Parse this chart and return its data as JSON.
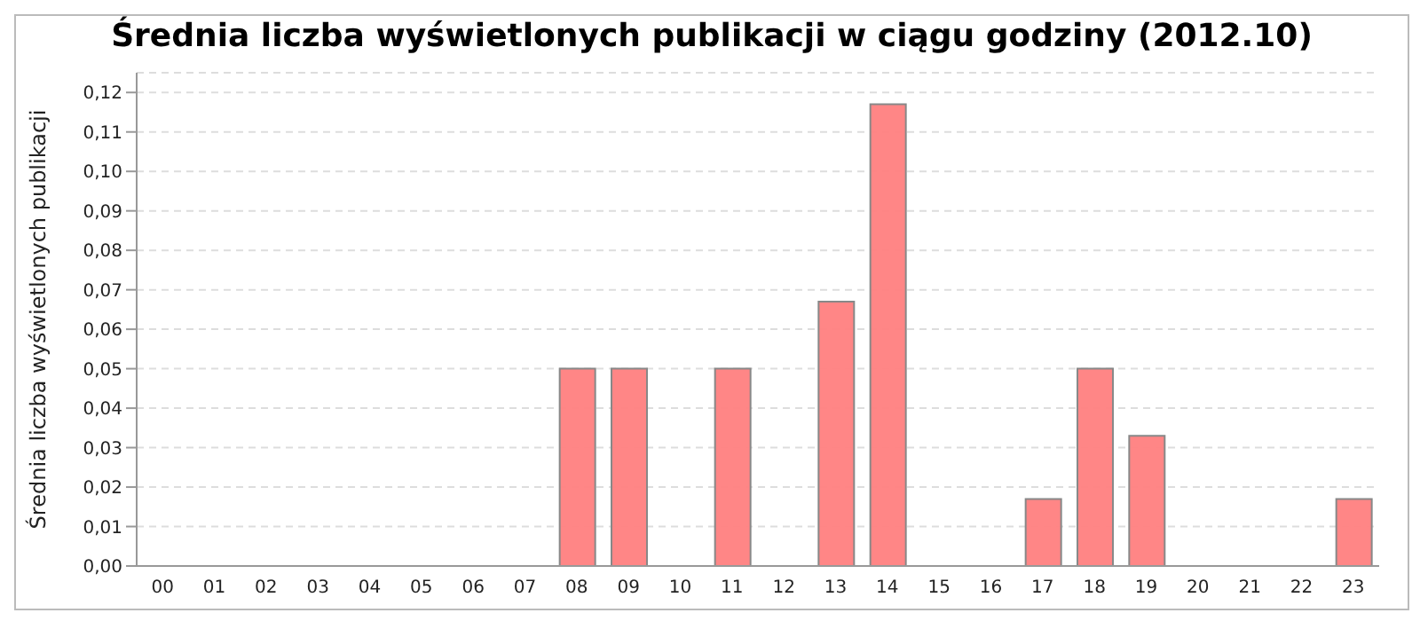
{
  "chart_data": {
    "type": "bar",
    "title": "Średnia liczba wyświetlonych publikacji w ciągu godziny (2012.10)",
    "ylabel": "Średnia liczba wyświetlonych publikacji",
    "categories": [
      "00",
      "01",
      "02",
      "03",
      "04",
      "05",
      "06",
      "07",
      "08",
      "09",
      "10",
      "11",
      "12",
      "13",
      "14",
      "15",
      "16",
      "17",
      "18",
      "19",
      "20",
      "21",
      "22",
      "23"
    ],
    "values": [
      0,
      0,
      0,
      0,
      0,
      0,
      0,
      0,
      0.05,
      0.05,
      0,
      0.05,
      0,
      0.067,
      0.117,
      0,
      0,
      0.017,
      0.05,
      0.033,
      0,
      0,
      0,
      0.017
    ],
    "color": "#ff8080",
    "ylim": [
      0,
      0.125
    ],
    "yticks": [
      {
        "value": 0,
        "label": "0,00"
      },
      {
        "value": 0.01,
        "label": "0,01"
      },
      {
        "value": 0.02,
        "label": "0,02"
      },
      {
        "value": 0.03,
        "label": "0,03"
      },
      {
        "value": 0.04,
        "label": "0,04"
      },
      {
        "value": 0.05,
        "label": "0,05"
      },
      {
        "value": 0.06,
        "label": "0,06"
      },
      {
        "value": 0.07,
        "label": "0,07"
      },
      {
        "value": 0.08,
        "label": "0,08"
      },
      {
        "value": 0.09,
        "label": "0,09"
      },
      {
        "value": 0.1,
        "label": "0,10"
      },
      {
        "value": 0.11,
        "label": "0,11"
      },
      {
        "value": 0.12,
        "label": "0,12"
      }
    ],
    "grid": "y",
    "legend": false
  }
}
